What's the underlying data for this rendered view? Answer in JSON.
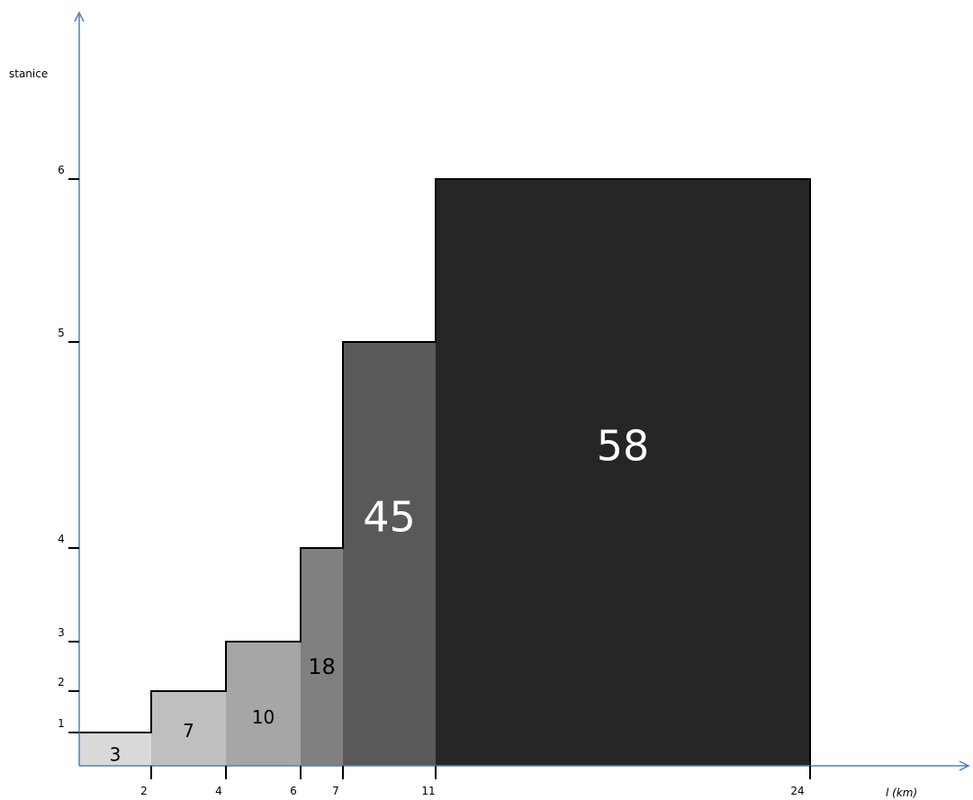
{
  "chart_data": {
    "type": "bar",
    "title": "",
    "xlabel": "l (km)",
    "ylabel": "stanice",
    "x_ticks": [
      2,
      4,
      6,
      7,
      11,
      24
    ],
    "y_ticks": [
      1,
      2,
      3,
      4,
      5,
      6
    ],
    "steps": [
      {
        "x_start": 0,
        "x_end": 2,
        "height": 1,
        "label": "3",
        "color": "#d9d9d9"
      },
      {
        "x_start": 2,
        "x_end": 4,
        "height": 2,
        "label": "7",
        "color": "#bfbfbf"
      },
      {
        "x_start": 4,
        "x_end": 6,
        "height": 3,
        "label": "10",
        "color": "#a6a6a6"
      },
      {
        "x_start": 6,
        "x_end": 7,
        "height": 4,
        "label": "18",
        "color": "#808080"
      },
      {
        "x_start": 7,
        "x_end": 11,
        "height": 5,
        "label": "45",
        "color": "#595959"
      },
      {
        "x_start": 11,
        "x_end": 24,
        "height": 6,
        "label": "58",
        "color": "#262626"
      }
    ],
    "grid": false,
    "legend": "none",
    "axis_color": "#4f81bd"
  }
}
